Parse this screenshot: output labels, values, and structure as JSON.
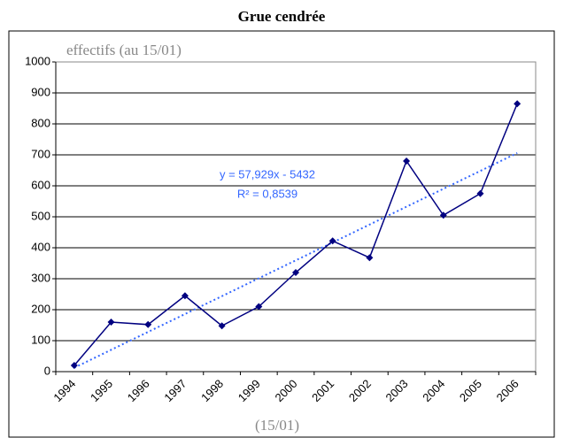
{
  "chart_data": {
    "type": "line",
    "title": "Grue cendrée",
    "y_label": "effectifs (au 15/01)",
    "x_label": "(15/01)",
    "categories": [
      "1994",
      "1995",
      "1996",
      "1997",
      "1998",
      "1999",
      "2000",
      "2001",
      "2002",
      "2003",
      "2004",
      "2005",
      "2006"
    ],
    "series": [
      {
        "color": "#000080",
        "values": [
          20,
          160,
          152,
          245,
          148,
          210,
          320,
          422,
          368,
          680,
          505,
          575,
          865
        ]
      }
    ],
    "trendline": {
      "color": "#3366ff",
      "equation": "y = 57,929x - 5432",
      "r2": "R² = 0,8539"
    },
    "ylim": [
      0,
      1000
    ],
    "yticks": [
      0,
      100,
      200,
      300,
      400,
      500,
      600,
      700,
      800,
      900,
      1000
    ],
    "grid": true
  }
}
